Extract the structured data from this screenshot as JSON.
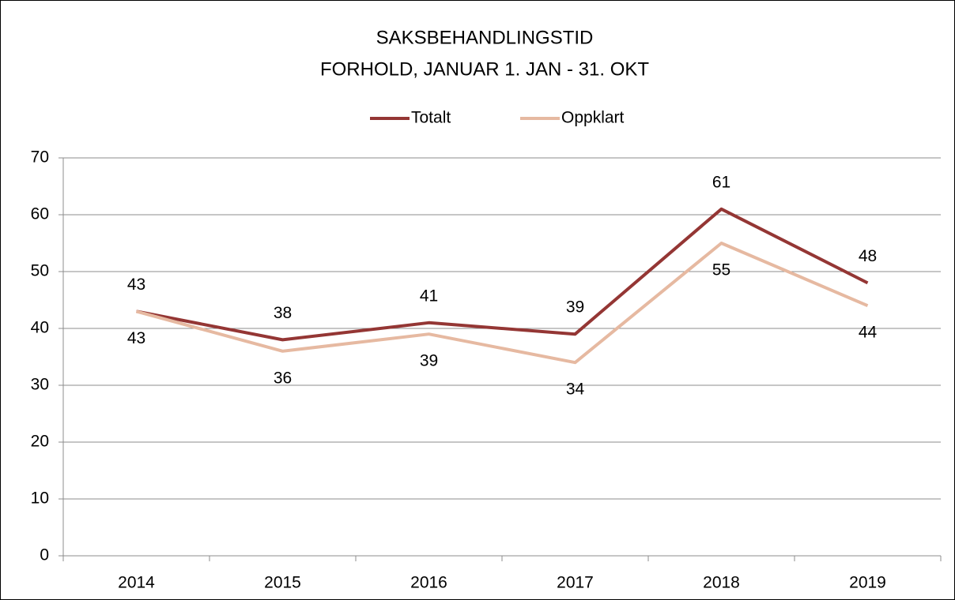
{
  "chart_data": {
    "type": "line",
    "title": "SAKSBEHANDLINGSTID",
    "subtitle": "FORHOLD, JANUAR 1. JAN - 31. OKT",
    "categories": [
      "2014",
      "2015",
      "2016",
      "2017",
      "2018",
      "2019"
    ],
    "series": [
      {
        "name": "Totalt",
        "color": "#943634",
        "values": [
          43,
          38,
          41,
          39,
          61,
          48
        ]
      },
      {
        "name": "Oppklart",
        "color": "#e6b9a1",
        "values": [
          43,
          36,
          39,
          34,
          55,
          44
        ]
      }
    ],
    "ylim": [
      0,
      70
    ],
    "yticks": [
      0,
      10,
      20,
      30,
      40,
      50,
      60,
      70
    ],
    "grid": true,
    "legend": "top"
  }
}
